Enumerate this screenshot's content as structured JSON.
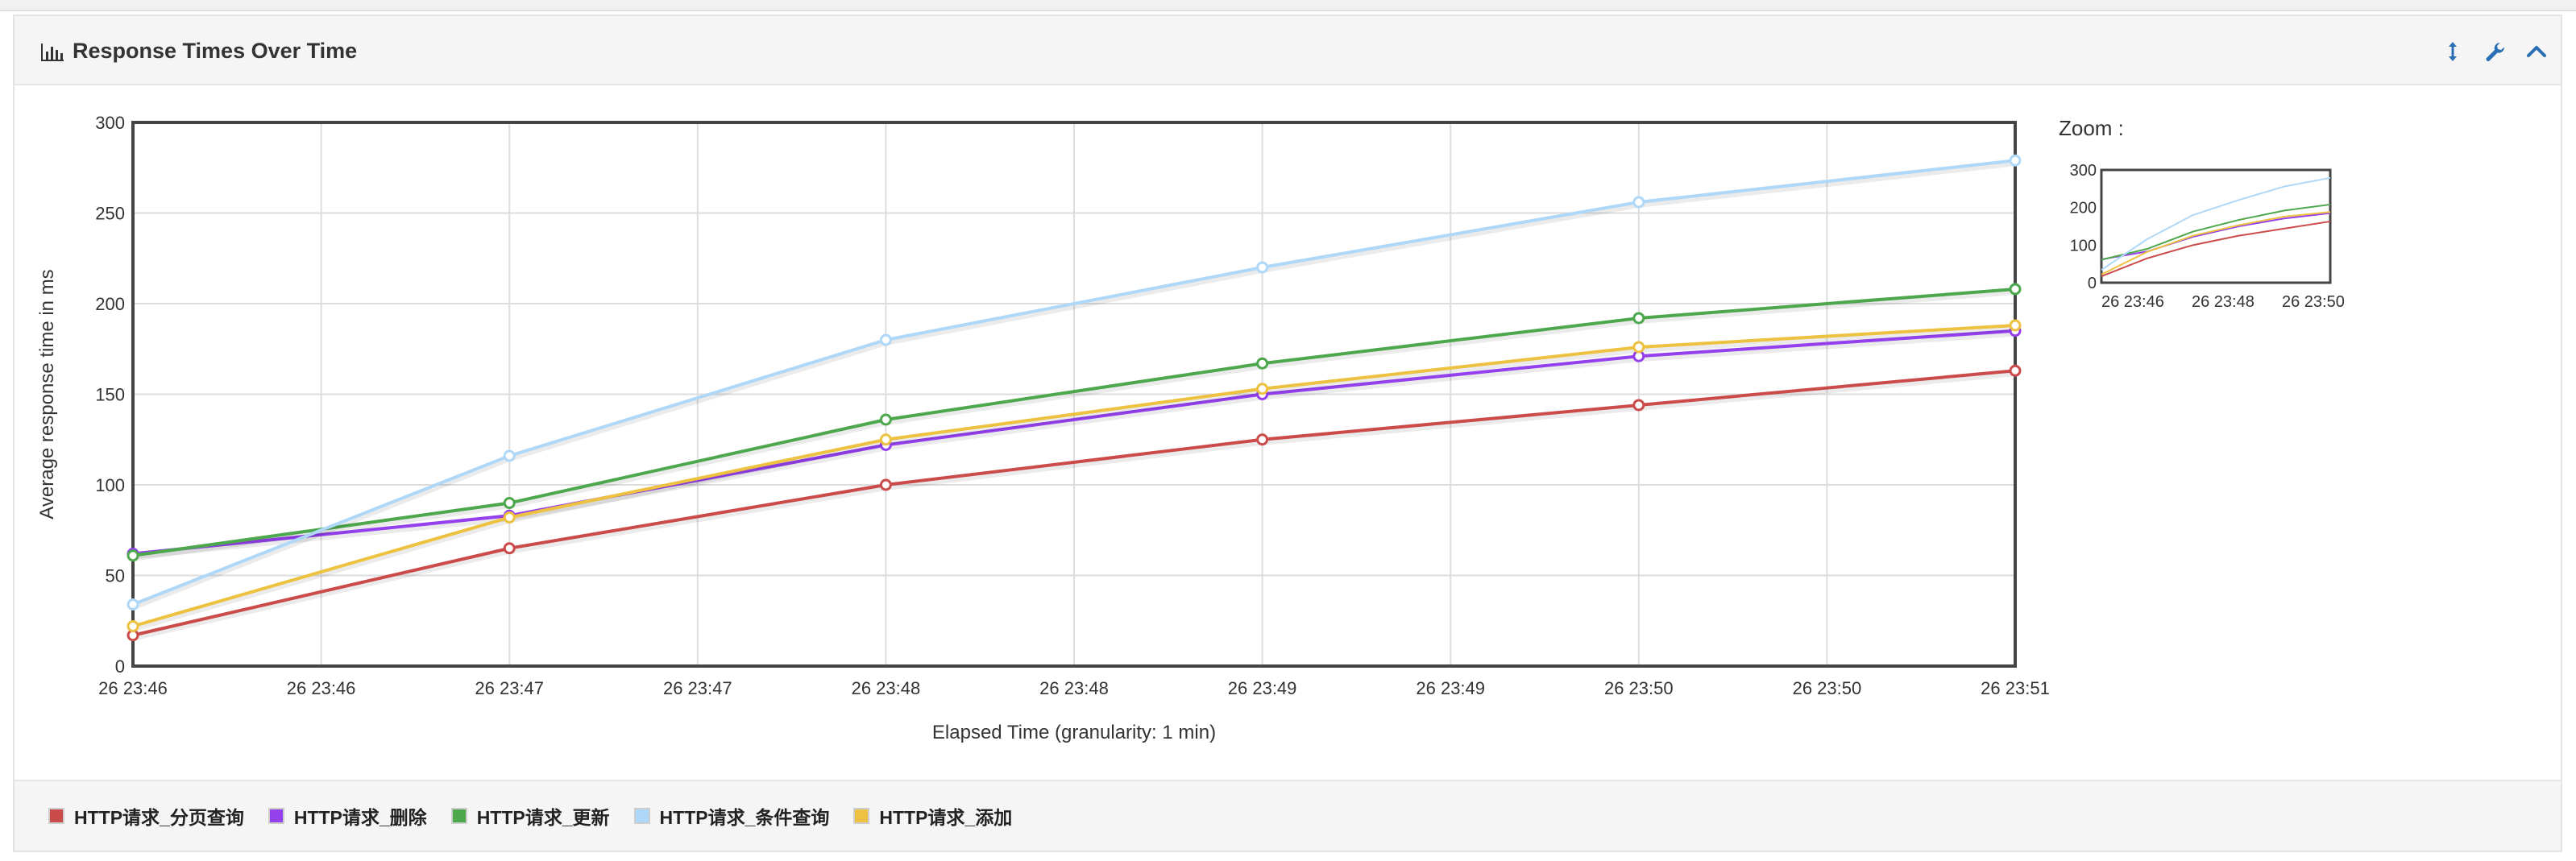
{
  "panel": {
    "title": "Response Times Over Time",
    "icons": [
      "bar-chart-icon",
      "expand-vertical-icon",
      "wrench-icon",
      "chevron-up-icon"
    ]
  },
  "zoom": {
    "label": "Zoom :",
    "yticks": [
      "0",
      "100",
      "200",
      "300"
    ],
    "xticks": [
      "26 23:46",
      "26 23:48",
      "26 23:50"
    ]
  },
  "chart_data": {
    "type": "line",
    "title": "",
    "xlabel": "Elapsed Time (granularity: 1 min)",
    "ylabel": "Average response time in ms",
    "ylim": [
      0,
      300
    ],
    "yticks": [
      0,
      50,
      100,
      150,
      200,
      250,
      300
    ],
    "xticks": [
      "26 23:46",
      "26 23:46",
      "26 23:47",
      "26 23:47",
      "26 23:48",
      "26 23:48",
      "26 23:49",
      "26 23:49",
      "26 23:50",
      "26 23:50",
      "26 23:51"
    ],
    "x": [
      "23:46",
      "23:47",
      "23:48",
      "23:49",
      "23:50",
      "23:51"
    ],
    "grid": true,
    "legend_position": "bottom",
    "series": [
      {
        "name": "HTTP请求_分页查询",
        "color": "#cb4b4b",
        "values": [
          17,
          65,
          100,
          125,
          144,
          163
        ]
      },
      {
        "name": "HTTP请求_删除",
        "color": "#9440ed",
        "values": [
          62,
          83,
          122,
          150,
          171,
          185
        ]
      },
      {
        "name": "HTTP请求_更新",
        "color": "#4da74d",
        "values": [
          61,
          90,
          136,
          167,
          192,
          208
        ]
      },
      {
        "name": "HTTP请求_条件查询",
        "color": "#afd8f8",
        "values": [
          34,
          116,
          180,
          220,
          256,
          279
        ]
      },
      {
        "name": "HTTP请求_添加",
        "color": "#edc240",
        "values": [
          22,
          82,
          125,
          153,
          176,
          188
        ]
      }
    ]
  }
}
